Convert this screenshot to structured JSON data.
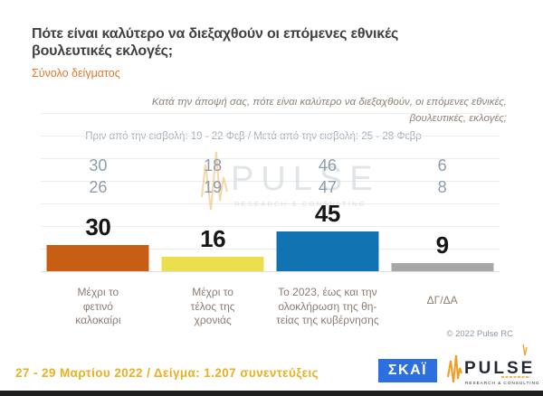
{
  "slide": {
    "title": "Πότε είναι καλύτερο να διεξαχθούν οι επόμενες εθνικές βουλευτικές εκλογές;",
    "subtitle": "Σύνολο δείγματος",
    "question_note": [
      "Κατά την άποψή σας, πότε είναι καλύτερο να διεξαχθούν, οι επόμενες εθνικές,",
      "βουλευτικές, εκλογές;"
    ],
    "comparison_note": "Πριν από την εισβολή: 19 - 22 Φεβ / Μετά από την εισβολή: 25 - 28 Φεβρ",
    "copyright": "© 2022 Pulse RC",
    "watermark": {
      "text": "PULSE",
      "sub": "RESEARCH & CONSULTING"
    },
    "footer": {
      "date_sample": "27 - 29 Μαρτίου 2022  /  Δείγμα: 1.207 συνεντεύξεις",
      "skai_logo_text": "ΣΚΑΪ",
      "pulse_logo_text": "PULSE",
      "pulse_logo_sub": "RESEARCH & CONSULTING"
    }
  },
  "chart_data": {
    "type": "bar",
    "categories": [
      "Μέχρι το\nφετινό\nκαλοκαίρι",
      "Μέχρι το\nτέλος της\nχρονιάς",
      "Το 2023, έως και την\nολοκλήρωση της θη-\nτείας της κυβέρνησης",
      "ΔΓ/ΔΑ"
    ],
    "series": [
      {
        "name": "Πριν από την εισβολή: 19 - 22 Φεβ",
        "values": [
          30,
          18,
          46,
          6
        ]
      },
      {
        "name": "Μετά από την εισβολή: 25 - 28 Φεβρ",
        "values": [
          26,
          19,
          47,
          8
        ]
      },
      {
        "name": "27 - 29 Μαρτίου 2022",
        "values": [
          30,
          16,
          45,
          9
        ]
      }
    ],
    "bar_colors": [
      "#c75e14",
      "#ebdf4d",
      "#1173b1",
      "#a7a7a7"
    ],
    "ylim": [
      0,
      50
    ],
    "grid": true,
    "value_labels": true,
    "legend_position": "none"
  }
}
